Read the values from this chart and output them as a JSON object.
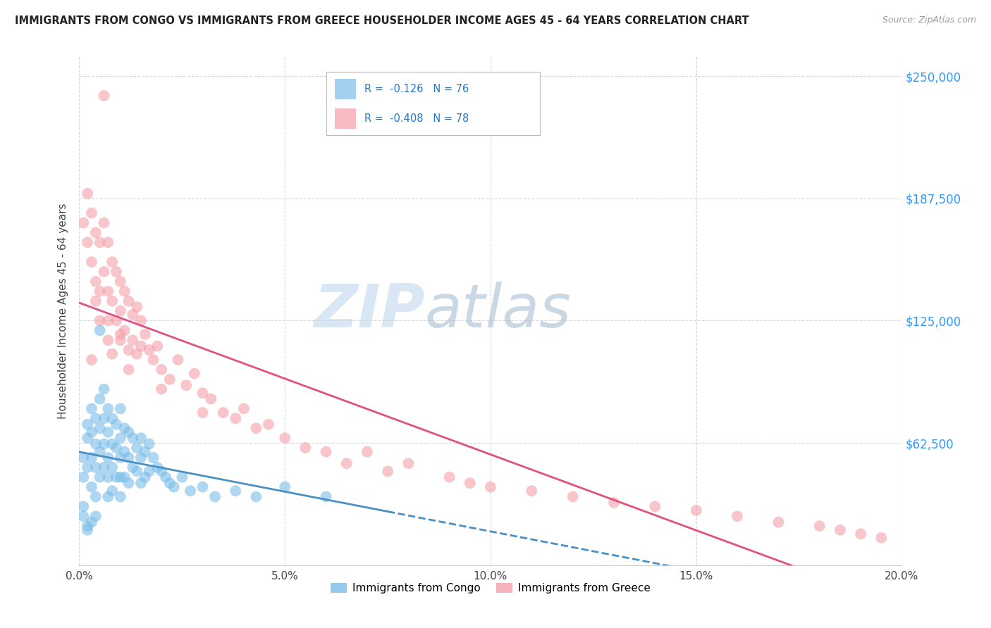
{
  "title": "IMMIGRANTS FROM CONGO VS IMMIGRANTS FROM GREECE HOUSEHOLDER INCOME AGES 45 - 64 YEARS CORRELATION CHART",
  "source": "Source: ZipAtlas.com",
  "ylabel": "Householder Income Ages 45 - 64 years",
  "xlabel_ticks": [
    "0.0%",
    "5.0%",
    "10.0%",
    "15.0%",
    "20.0%"
  ],
  "xlabel_values": [
    0.0,
    0.05,
    0.1,
    0.15,
    0.2
  ],
  "ylabel_ticks": [
    "$62,500",
    "$125,000",
    "$187,500",
    "$250,000"
  ],
  "ylabel_values": [
    62500,
    125000,
    187500,
    250000
  ],
  "xlim": [
    0.0,
    0.2
  ],
  "ylim": [
    0,
    260000
  ],
  "congo_R": -0.126,
  "congo_N": 76,
  "greece_R": -0.408,
  "greece_N": 78,
  "congo_color": "#7bbde8",
  "greece_color": "#f4a0a8",
  "congo_line_color": "#4a90c4",
  "greece_line_color": "#e05080",
  "congo_label": "Immigrants from Congo",
  "greece_label": "Immigrants from Greece",
  "background_color": "#ffffff",
  "grid_color": "#d8d8d8",
  "congo_x": [
    0.001,
    0.001,
    0.002,
    0.002,
    0.002,
    0.003,
    0.003,
    0.003,
    0.003,
    0.004,
    0.004,
    0.004,
    0.004,
    0.005,
    0.005,
    0.005,
    0.005,
    0.006,
    0.006,
    0.006,
    0.006,
    0.007,
    0.007,
    0.007,
    0.007,
    0.007,
    0.008,
    0.008,
    0.008,
    0.008,
    0.009,
    0.009,
    0.009,
    0.01,
    0.01,
    0.01,
    0.01,
    0.01,
    0.011,
    0.011,
    0.011,
    0.012,
    0.012,
    0.012,
    0.013,
    0.013,
    0.014,
    0.014,
    0.015,
    0.015,
    0.015,
    0.016,
    0.016,
    0.017,
    0.017,
    0.018,
    0.019,
    0.02,
    0.021,
    0.022,
    0.023,
    0.025,
    0.027,
    0.03,
    0.033,
    0.038,
    0.043,
    0.05,
    0.06,
    0.001,
    0.001,
    0.002,
    0.002,
    0.003,
    0.004,
    0.005
  ],
  "congo_y": [
    55000,
    45000,
    65000,
    72000,
    50000,
    80000,
    68000,
    55000,
    40000,
    75000,
    62000,
    50000,
    35000,
    85000,
    70000,
    58000,
    45000,
    90000,
    75000,
    62000,
    50000,
    80000,
    68000,
    55000,
    45000,
    35000,
    75000,
    62000,
    50000,
    38000,
    72000,
    60000,
    45000,
    80000,
    65000,
    55000,
    45000,
    35000,
    70000,
    58000,
    45000,
    68000,
    55000,
    42000,
    65000,
    50000,
    60000,
    48000,
    65000,
    55000,
    42000,
    58000,
    45000,
    62000,
    48000,
    55000,
    50000,
    48000,
    45000,
    42000,
    40000,
    45000,
    38000,
    40000,
    35000,
    38000,
    35000,
    40000,
    35000,
    30000,
    25000,
    20000,
    18000,
    22000,
    25000,
    120000
  ],
  "greece_x": [
    0.001,
    0.002,
    0.002,
    0.003,
    0.003,
    0.004,
    0.004,
    0.005,
    0.005,
    0.006,
    0.006,
    0.007,
    0.007,
    0.007,
    0.008,
    0.008,
    0.009,
    0.009,
    0.01,
    0.01,
    0.01,
    0.011,
    0.011,
    0.012,
    0.012,
    0.013,
    0.013,
    0.014,
    0.014,
    0.015,
    0.015,
    0.016,
    0.017,
    0.018,
    0.019,
    0.02,
    0.022,
    0.024,
    0.026,
    0.028,
    0.03,
    0.032,
    0.035,
    0.038,
    0.04,
    0.043,
    0.046,
    0.05,
    0.055,
    0.06,
    0.065,
    0.07,
    0.075,
    0.08,
    0.09,
    0.095,
    0.1,
    0.11,
    0.12,
    0.13,
    0.14,
    0.15,
    0.16,
    0.17,
    0.18,
    0.185,
    0.19,
    0.195,
    0.003,
    0.005,
    0.007,
    0.008,
    0.01,
    0.012,
    0.02,
    0.03,
    0.006,
    0.004
  ],
  "greece_y": [
    175000,
    190000,
    165000,
    180000,
    155000,
    170000,
    145000,
    165000,
    140000,
    175000,
    150000,
    165000,
    140000,
    125000,
    155000,
    135000,
    150000,
    125000,
    145000,
    130000,
    115000,
    140000,
    120000,
    135000,
    110000,
    128000,
    115000,
    132000,
    108000,
    125000,
    112000,
    118000,
    110000,
    105000,
    112000,
    100000,
    95000,
    105000,
    92000,
    98000,
    88000,
    85000,
    78000,
    75000,
    80000,
    70000,
    72000,
    65000,
    60000,
    58000,
    52000,
    58000,
    48000,
    52000,
    45000,
    42000,
    40000,
    38000,
    35000,
    32000,
    30000,
    28000,
    25000,
    22000,
    20000,
    18000,
    16000,
    14000,
    105000,
    125000,
    115000,
    108000,
    118000,
    100000,
    90000,
    78000,
    240000,
    135000
  ]
}
